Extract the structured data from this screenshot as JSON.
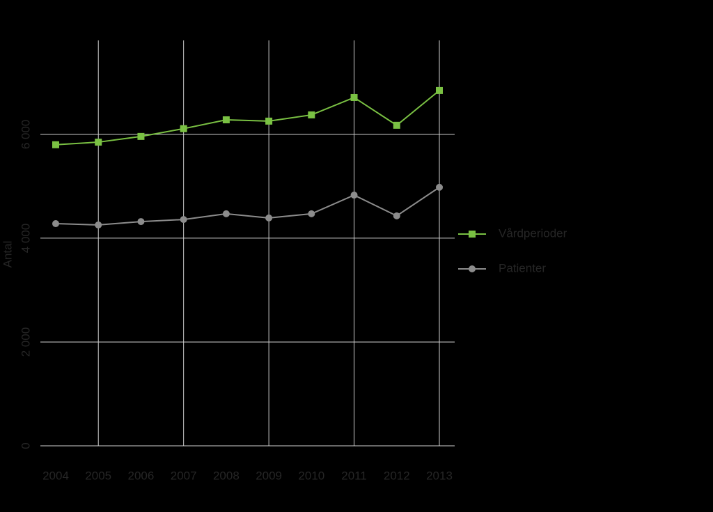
{
  "chart_data": {
    "type": "line",
    "y_label": "Antal",
    "categories": [
      "2004",
      "2005",
      "2006",
      "2007",
      "2008",
      "2009",
      "2010",
      "2011",
      "2012",
      "2013"
    ],
    "series": [
      {
        "name": "Vårdperioder",
        "color": "#7ac143",
        "marker": "square",
        "values": [
          5800,
          5850,
          5960,
          6110,
          6280,
          6255,
          6375,
          6710,
          6175,
          6845
        ]
      },
      {
        "name": "Patienter",
        "color": "#8c8c8c",
        "marker": "circle",
        "values": [
          4280,
          4255,
          4320,
          4360,
          4470,
          4390,
          4470,
          4830,
          4430,
          4980
        ]
      }
    ],
    "ylim": [
      0,
      7810
    ],
    "yticks": [
      0,
      {
        "value": 2000,
        "label": "2 000"
      },
      {
        "value": 4000,
        "label": "4 000"
      },
      {
        "value": 6000,
        "label": "6 000"
      }
    ],
    "grid": true,
    "legend": "right"
  }
}
